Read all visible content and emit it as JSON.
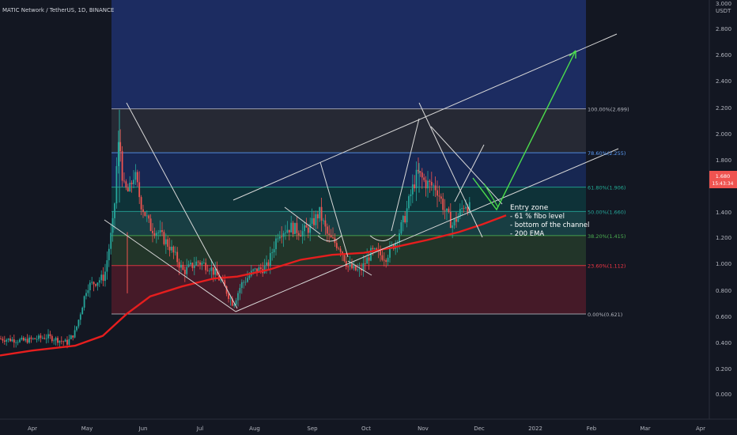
{
  "header": {
    "title": "MATIC Network / TetherUS, 1D, BINANCE"
  },
  "axis": {
    "unit": "USDT"
  },
  "current_price": {
    "value": "1.680",
    "countdown": "15:43:34"
  },
  "chart_data": {
    "type": "candlestick",
    "title": "MATIC Network / TetherUS, 1D, BINANCE",
    "y_ticks": [
      "3.000",
      "2.800",
      "2.600",
      "2.400",
      "2.200",
      "2.000",
      "1.800",
      "1.600",
      "1.400",
      "1.200",
      "1.000",
      "0.800",
      "0.600",
      "0.400",
      "0.200",
      "0.000",
      "-0.000"
    ],
    "x_ticks": [
      "Apr",
      "May",
      "Jun",
      "Jul",
      "Aug",
      "Sep",
      "Oct",
      "Nov",
      "Dec",
      "2022",
      "Feb",
      "Mar",
      "Apr"
    ],
    "ylim": [
      -0.2,
      3.0
    ],
    "fib_levels": [
      {
        "label": "100.00%(2.699)",
        "value": 2.699,
        "color": "#b2b5be"
      },
      {
        "label": "78.60%(2.255)",
        "value": 2.255,
        "color": "#5b9cf6"
      },
      {
        "label": "61.80%(1.906)",
        "value": 1.906,
        "color": "#22ab94"
      },
      {
        "label": "50.00%(1.660)",
        "value": 1.66,
        "color": "#26a69a"
      },
      {
        "label": "38.20%(1.415)",
        "value": 1.415,
        "color": "#4caf50"
      },
      {
        "label": "23.60%(1.112)",
        "value": 1.112,
        "color": "#f23645"
      },
      {
        "label": "0.00%(0.621)",
        "value": 0.621,
        "color": "#b2b5be"
      }
    ],
    "annotation": {
      "title": "Entry zone",
      "lines": [
        "- 61 % fibo level",
        "- bottom of the channel",
        "- 200 EMA"
      ]
    },
    "colors": {
      "up": "#26a69a",
      "down": "#ef5350",
      "ema": "#e61e1e",
      "target_arrow": "#4cdf4c"
    }
  }
}
